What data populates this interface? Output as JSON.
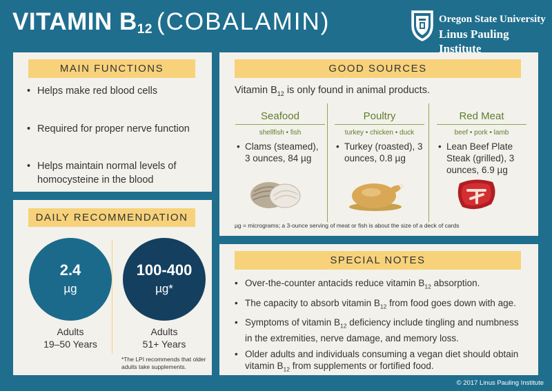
{
  "header": {
    "title_main": "VITAMIN B",
    "title_sub": "12",
    "title_paren": "(COBALAMIN)",
    "logo_line1": "Oregon State University",
    "logo_line2": "Linus Pauling Institute"
  },
  "main_functions": {
    "heading": "MAIN FUNCTIONS",
    "items": [
      "Helps make red blood cells",
      "Required for proper nerve function",
      "Helps maintain normal levels of homocysteine in the blood"
    ]
  },
  "daily": {
    "heading": "DAILY RECOMMENDATION",
    "left": {
      "value": "2.4",
      "unit": "µg",
      "label_line1": "Adults",
      "label_line2": "19–50 Years"
    },
    "right": {
      "value": "100-400",
      "unit": "µg*",
      "label_line1": "Adults",
      "label_line2": "51+ Years"
    },
    "footnote_line1": "*The LPI recommends that older",
    "footnote_line2": "adults take supplements."
  },
  "sources": {
    "heading": "GOOD SOURCES",
    "intro_pre": "Vitamin B",
    "intro_sub": "12",
    "intro_post": " is only found in animal products.",
    "columns": [
      {
        "title": "Seafood",
        "types": "shellfish • fish",
        "item": "Clams (steamed), 3 ounces, 84 µg",
        "icon": "clam-icon"
      },
      {
        "title": "Poultry",
        "types": "turkey • chicken • duck",
        "item": "Turkey (roasted), 3 ounces, 0.8 µg",
        "icon": "roast-turkey-icon"
      },
      {
        "title": "Red Meat",
        "types": "beef • pork • lamb",
        "item": "Lean Beef Plate Steak (grilled), 3 ounces, 6.9 µg",
        "icon": "steak-icon"
      }
    ],
    "footnote": "µg = micrograms; a 3-ounce serving of meat or fish is about the size of a deck of cards"
  },
  "notes": {
    "heading": "SPECIAL NOTES",
    "items": [
      {
        "pre": "Over-the-counter antacids reduce vitamin B",
        "sub": "12",
        "post": " absorption."
      },
      {
        "pre": "The capacity to absorb vitamin B",
        "sub": "12",
        "post": " from food goes down with age."
      },
      {
        "pre": "Symptoms of vitamin B",
        "sub": "12",
        "post": " deficiency include tingling and numbness in the extremities, nerve damage, and memory loss."
      },
      {
        "pre": "Older adults and individuals consuming a vegan diet should obtain vitamin B",
        "sub": "12",
        "post": " from supplements or fortified food."
      }
    ]
  },
  "footer": {
    "copyright": "© 2017 Linus Pauling Institute"
  },
  "colors": {
    "background": "#1f6e8e",
    "panel": "#f3f1eb",
    "banner": "#f7d27a",
    "circle_light": "#1b6a8c",
    "circle_dark": "#143f5f",
    "source_green": "#5e7d2c"
  }
}
